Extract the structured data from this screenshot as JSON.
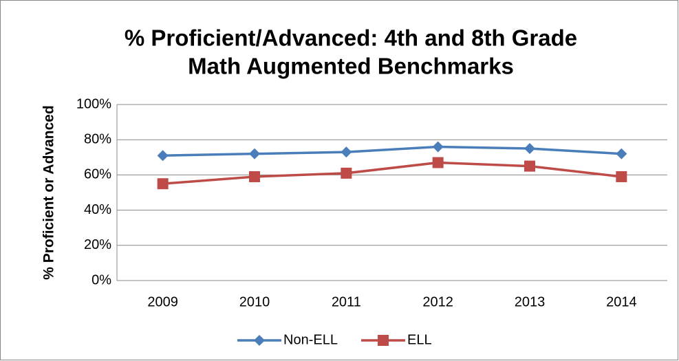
{
  "chart_data": {
    "type": "line",
    "title": [
      "% Proficient/Advanced: 4th and 8th Grade",
      "Math Augmented Benchmarks"
    ],
    "y_label": "% Proficient or Advanced",
    "categories": [
      "2009",
      "2010",
      "2011",
      "2012",
      "2013",
      "2014"
    ],
    "series": [
      {
        "name": "Non-ELL",
        "color": "#4a7ebb",
        "marker": "diamond",
        "values": [
          71,
          72,
          73,
          76,
          75,
          72
        ]
      },
      {
        "name": "ELL",
        "color": "#be4b48",
        "marker": "square",
        "values": [
          55,
          59,
          61,
          67,
          65,
          59
        ]
      }
    ],
    "ylim": [
      0,
      100
    ],
    "yticks": [
      {
        "value": 0,
        "label": "0%"
      },
      {
        "value": 20,
        "label": "20%"
      },
      {
        "value": 40,
        "label": "40%"
      },
      {
        "value": 60,
        "label": "60%"
      },
      {
        "value": 80,
        "label": "80%"
      },
      {
        "value": 100,
        "label": "100%"
      }
    ],
    "grid": true,
    "legend": "bottom"
  }
}
